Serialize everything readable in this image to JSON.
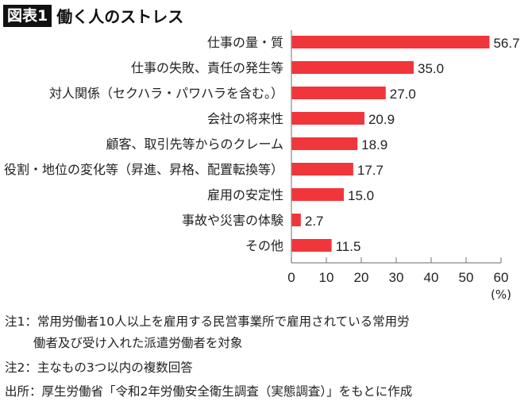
{
  "header": {
    "badge": "図表1",
    "title": "働く人のストレス"
  },
  "chart_data": {
    "type": "bar",
    "orientation": "horizontal",
    "categories": [
      "仕事の量・質",
      "仕事の失敗、責任の発生等",
      "対人関係（セクハラ・パワハラを含む。）",
      "会社の将来性",
      "顧客、取引先等からのクレーム",
      "役割・地位の変化等（昇進、昇格、配置転換等）",
      "雇用の安定性",
      "事故や災害の体験",
      "その他"
    ],
    "values": [
      56.7,
      35.0,
      27.0,
      20.9,
      18.9,
      17.7,
      15.0,
      2.7,
      11.5
    ],
    "data_labels": [
      "56.7",
      "35.0",
      "27.0",
      "20.9",
      "18.9",
      "17.7",
      "15.0",
      "2.7",
      "11.5"
    ],
    "xlim": [
      0,
      60
    ],
    "xticks": [
      "0",
      "10",
      "20",
      "30",
      "40",
      "50",
      "60"
    ],
    "xunit": "(%)",
    "grid": false,
    "bar_color": "#f0363a"
  },
  "notes": [
    "注1：常用労働者10人以上を雇用する民営事業所で雇用されている常用労",
    "　　 働者及び受け入れた派遣労働者を対象",
    "注2：主なもの3つ以内の複数回答",
    "出所：厚生労働省「令和2年労働安全衛生調査（実態調査）」をもとに作成"
  ]
}
